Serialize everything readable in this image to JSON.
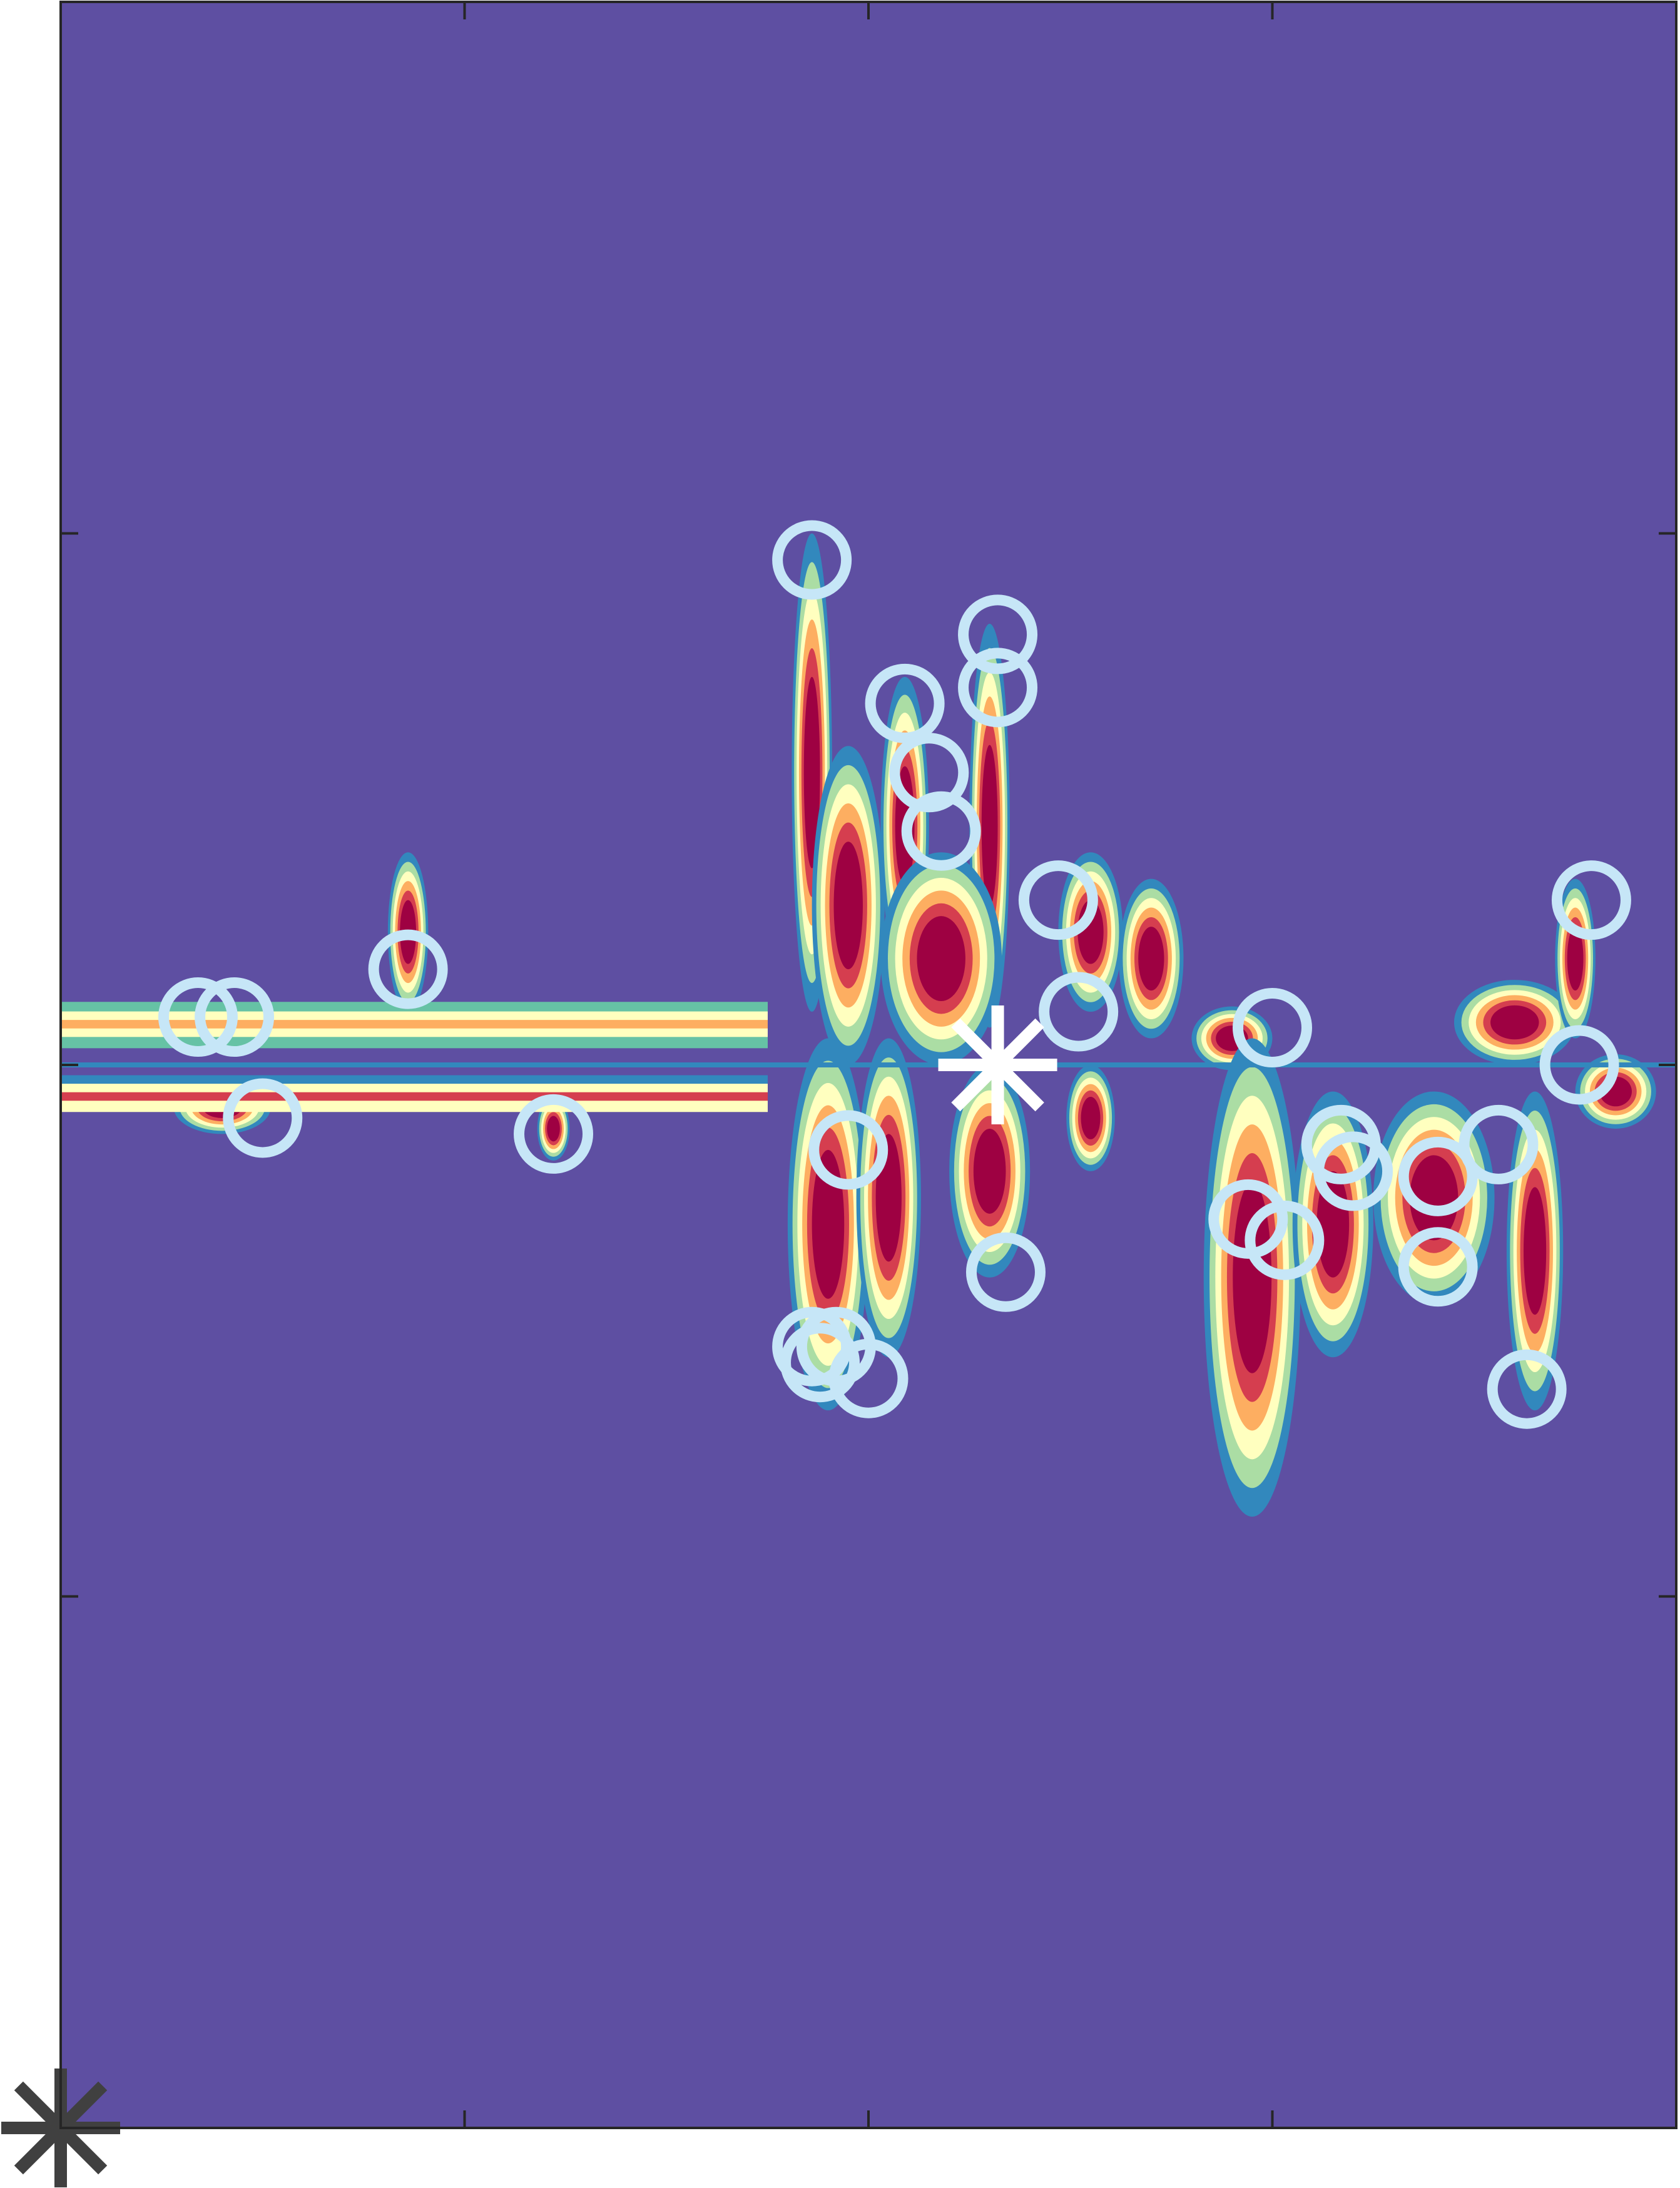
{
  "chart_data": {
    "type": "heatmap",
    "title": "",
    "xlabel": "",
    "ylabel": "",
    "xlim": [
      0,
      4
    ],
    "ylim": [
      -2,
      2
    ],
    "grid": false,
    "colormap": [
      "#5e4fa2",
      "#3288bd",
      "#66c2a5",
      "#abdda4",
      "#e6f598",
      "#ffffbf",
      "#fee08b",
      "#fdae61",
      "#f46d43",
      "#d53e4f",
      "#9e0142"
    ],
    "xticks": [
      0,
      1,
      2,
      3,
      4
    ],
    "yticks": [
      -2,
      -1,
      0,
      1,
      2
    ],
    "background_color": "#5e4fa2",
    "center_marker": {
      "x": 2.32,
      "y": 0.0,
      "color": "#ffffff"
    },
    "origin_marker": {
      "x": 0.0,
      "y": -2.0,
      "color": "#404040"
    },
    "circle_color": "#c6e6f7",
    "circles": [
      {
        "x": 1.86,
        "y": 0.95
      },
      {
        "x": 2.32,
        "y": 0.81
      },
      {
        "x": 2.32,
        "y": 0.71
      },
      {
        "x": 2.09,
        "y": 0.68
      },
      {
        "x": 2.15,
        "y": 0.55
      },
      {
        "x": 2.18,
        "y": 0.44
      },
      {
        "x": 2.47,
        "y": 0.31
      },
      {
        "x": 3.79,
        "y": 0.31
      },
      {
        "x": 0.86,
        "y": 0.18
      },
      {
        "x": 2.52,
        "y": 0.1
      },
      {
        "x": 3.0,
        "y": 0.07
      },
      {
        "x": 0.34,
        "y": 0.09
      },
      {
        "x": 0.43,
        "y": 0.09
      },
      {
        "x": 3.76,
        "y": 0.0
      },
      {
        "x": 0.5,
        "y": -0.1
      },
      {
        "x": 1.22,
        "y": -0.13
      },
      {
        "x": 1.95,
        "y": -0.16
      },
      {
        "x": 3.17,
        "y": -0.15
      },
      {
        "x": 3.2,
        "y": -0.2
      },
      {
        "x": 3.41,
        "y": -0.21
      },
      {
        "x": 3.56,
        "y": -0.15
      },
      {
        "x": 2.94,
        "y": -0.29
      },
      {
        "x": 3.03,
        "y": -0.33
      },
      {
        "x": 3.41,
        "y": -0.38
      },
      {
        "x": 2.34,
        "y": -0.39
      },
      {
        "x": 1.86,
        "y": -0.53
      },
      {
        "x": 1.92,
        "y": -0.53
      },
      {
        "x": 1.88,
        "y": -0.56
      },
      {
        "x": 2.0,
        "y": -0.59
      },
      {
        "x": 3.63,
        "y": -0.61
      }
    ],
    "bands": [
      {
        "y": 0.108,
        "color": "#66c2a5"
      },
      {
        "y": 0.09,
        "color": "#ffffbf"
      },
      {
        "y": 0.074,
        "color": "#fdae61"
      },
      {
        "y": 0.058,
        "color": "#ffffbf"
      },
      {
        "y": 0.042,
        "color": "#66c2a5"
      },
      {
        "y": -0.03,
        "color": "#3288bd"
      },
      {
        "y": -0.046,
        "color": "#ffffbf"
      },
      {
        "y": -0.062,
        "color": "#d53e4f"
      },
      {
        "y": -0.078,
        "color": "#ffffbf"
      }
    ],
    "blobs": [
      {
        "x": 1.86,
        "y": 0.55,
        "dx": 0.05,
        "dy": 0.45
      },
      {
        "x": 1.95,
        "y": 0.3,
        "dx": 0.09,
        "dy": 0.3
      },
      {
        "x": 2.09,
        "y": 0.45,
        "dx": 0.06,
        "dy": 0.28
      },
      {
        "x": 2.3,
        "y": 0.45,
        "dx": 0.05,
        "dy": 0.38
      },
      {
        "x": 2.18,
        "y": 0.2,
        "dx": 0.15,
        "dy": 0.2
      },
      {
        "x": 2.55,
        "y": 0.25,
        "dx": 0.08,
        "dy": 0.15
      },
      {
        "x": 2.7,
        "y": 0.2,
        "dx": 0.08,
        "dy": 0.15
      },
      {
        "x": 2.9,
        "y": 0.05,
        "dx": 0.1,
        "dy": 0.06
      },
      {
        "x": 0.86,
        "y": 0.25,
        "dx": 0.05,
        "dy": 0.15
      },
      {
        "x": 3.6,
        "y": 0.08,
        "dx": 0.15,
        "dy": 0.08
      },
      {
        "x": 3.75,
        "y": 0.2,
        "dx": 0.05,
        "dy": 0.15
      },
      {
        "x": 1.9,
        "y": -0.3,
        "dx": 0.1,
        "dy": 0.35
      },
      {
        "x": 2.05,
        "y": -0.25,
        "dx": 0.08,
        "dy": 0.3
      },
      {
        "x": 2.3,
        "y": -0.2,
        "dx": 0.1,
        "dy": 0.2
      },
      {
        "x": 2.55,
        "y": -0.1,
        "dx": 0.06,
        "dy": 0.1
      },
      {
        "x": 2.95,
        "y": -0.4,
        "dx": 0.12,
        "dy": 0.45
      },
      {
        "x": 3.15,
        "y": -0.3,
        "dx": 0.1,
        "dy": 0.25
      },
      {
        "x": 3.4,
        "y": -0.25,
        "dx": 0.15,
        "dy": 0.2
      },
      {
        "x": 3.65,
        "y": -0.35,
        "dx": 0.07,
        "dy": 0.3
      },
      {
        "x": 3.85,
        "y": -0.05,
        "dx": 0.1,
        "dy": 0.07
      },
      {
        "x": 0.4,
        "y": -0.08,
        "dx": 0.12,
        "dy": 0.05
      },
      {
        "x": 1.22,
        "y": -0.12,
        "dx": 0.04,
        "dy": 0.06
      }
    ]
  }
}
